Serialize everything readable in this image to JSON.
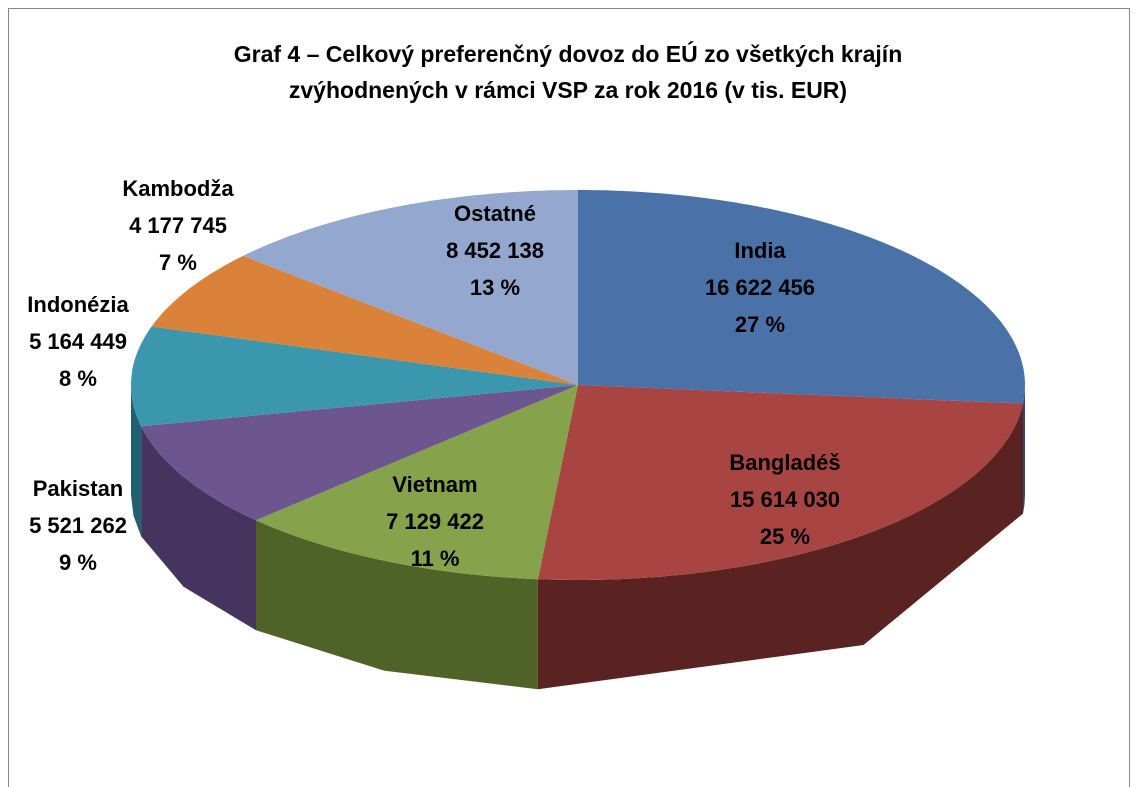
{
  "chart_data": {
    "type": "pie",
    "title": "Graf 4 – Celkový preferenčný dovoz do EÚ zo všetkých krajín zvýhodnených v rámci VSP za rok 2016 (v tis. EUR)",
    "categories": [
      "India",
      "Bangladéš",
      "Vietnam",
      "Pakistan",
      "Indonézia",
      "Kambodža",
      "Ostatné"
    ],
    "values": [
      16622456,
      15614030,
      7129422,
      5521262,
      5164449,
      4177745,
      8452138
    ],
    "value_labels": [
      "16 622 456",
      "15 614 030",
      "7 129 422",
      "5 521 262",
      "5 164 449",
      "4 177 745",
      "8 452 138"
    ],
    "percentages": [
      27,
      25,
      11,
      9,
      8,
      7,
      13
    ],
    "percentage_labels": [
      "27 %",
      "25 %",
      "11 %",
      "9 %",
      "8 %",
      "7 %",
      "13 %"
    ],
    "colors": [
      "#4a72a8",
      "#a84442",
      "#86a24a",
      "#6d558f",
      "#3b97ad",
      "#da8239",
      "#94a8cf"
    ],
    "side_colors": [
      "#2c4a75",
      "#5a2220",
      "#4f6329",
      "#45355e",
      "#21606f",
      "#8e5020",
      "#5c6d91"
    ],
    "three_d": true
  }
}
